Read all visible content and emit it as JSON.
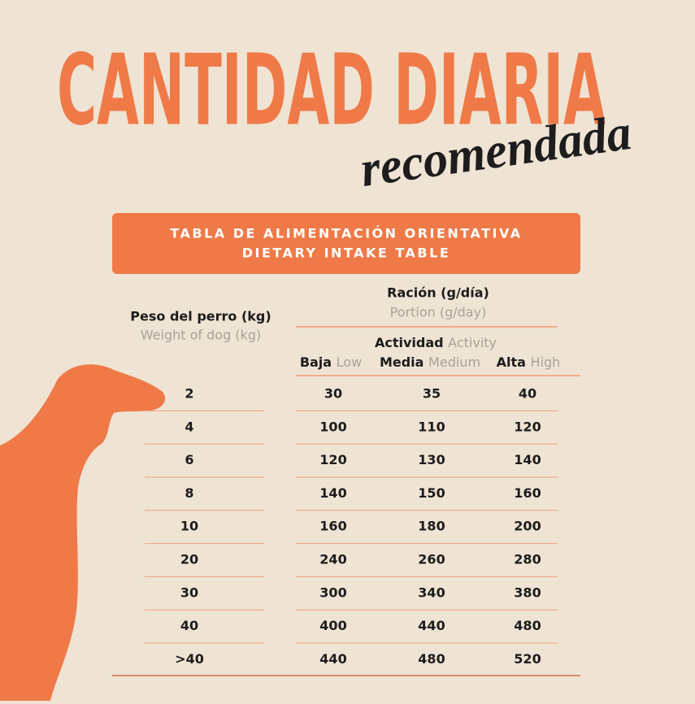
{
  "title": "CANTIDAD DIARIA",
  "subtitle": "recomendada",
  "banner": [
    "TABLA DE ALIMENTACIÓN ORIENTATIVA",
    "DIETARY INTAKE TABLE"
  ],
  "header": {
    "weight": {
      "es": "Peso del perro (kg)",
      "en": "Weight of dog (kg)"
    },
    "portion": {
      "es": "Ración (g/día)",
      "en": "Portion (g/day)"
    },
    "activity": {
      "es": "Actividad",
      "en": "Activity"
    },
    "levels": [
      {
        "es": "Baja",
        "en": "Low"
      },
      {
        "es": "Media",
        "en": "Medium"
      },
      {
        "es": "Alta",
        "en": "High"
      }
    ]
  },
  "table": {
    "rows": [
      [
        2,
        30,
        35,
        40
      ],
      [
        4,
        100,
        110,
        120
      ],
      [
        6,
        120,
        130,
        140
      ],
      [
        8,
        140,
        150,
        160
      ],
      [
        10,
        160,
        180,
        200
      ],
      [
        20,
        240,
        260,
        280
      ],
      [
        30,
        300,
        340,
        380
      ],
      [
        40,
        400,
        440,
        480
      ],
      [
        ">40",
        440,
        480,
        520
      ]
    ]
  }
}
